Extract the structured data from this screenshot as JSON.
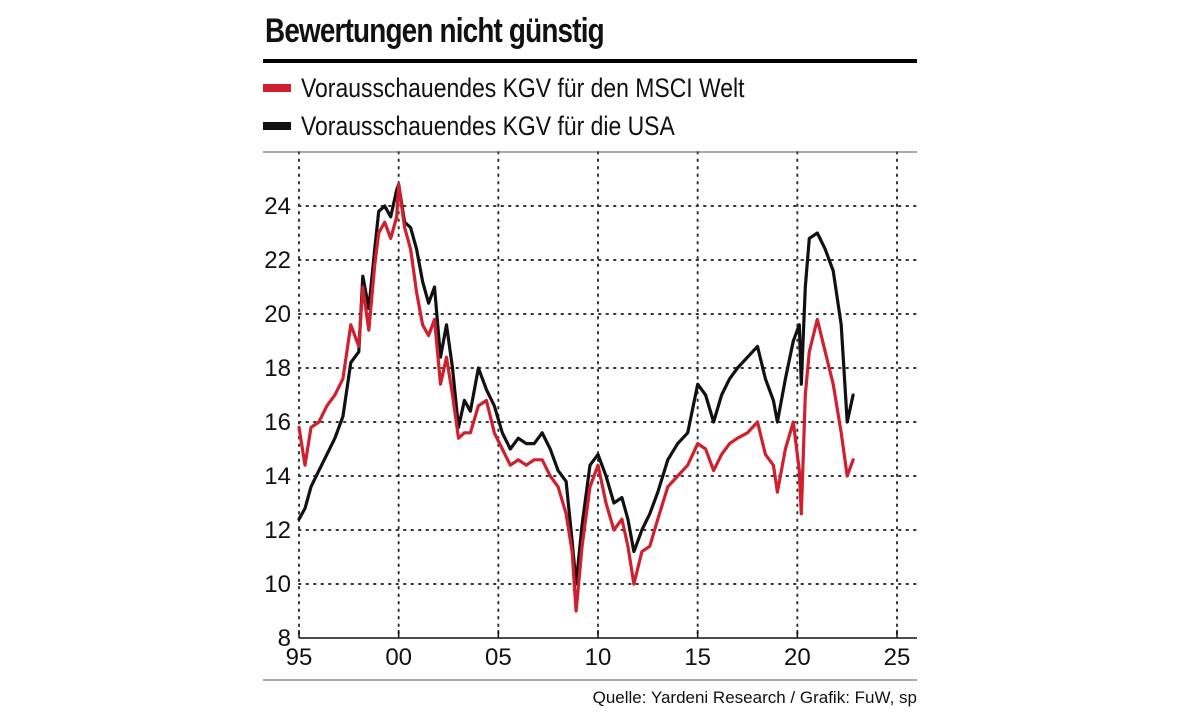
{
  "chart_data": {
    "type": "line",
    "title": "Bewertungen nicht günstig",
    "xlabel": "",
    "ylabel": "",
    "xlim": [
      1995,
      2025
    ],
    "ylim": [
      8,
      26
    ],
    "x_ticks": [
      1995,
      2000,
      2005,
      2010,
      2015,
      2020,
      2025
    ],
    "x_tick_labels": [
      "95",
      "00",
      "05",
      "10",
      "15",
      "20",
      "25"
    ],
    "y_ticks": [
      8,
      10,
      12,
      14,
      16,
      18,
      20,
      22,
      24
    ],
    "y_tick_labels": [
      "8",
      "10",
      "12",
      "14",
      "16",
      "18",
      "20",
      "22",
      "24"
    ],
    "grid": true,
    "legend_position": "top-left",
    "series": [
      {
        "name": "Vorausschauendes KGV für den MSCI Welt",
        "color": "#d0202e",
        "x": [
          1995.0,
          1995.3,
          1995.6,
          1996.0,
          1996.4,
          1996.8,
          1997.2,
          1997.6,
          1998.0,
          1998.2,
          1998.5,
          1998.8,
          1999.0,
          1999.3,
          1999.6,
          1999.9,
          2000.0,
          2000.3,
          2000.6,
          2000.9,
          2001.2,
          2001.5,
          2001.8,
          2002.1,
          2002.4,
          2002.7,
          2003.0,
          2003.3,
          2003.6,
          2004.0,
          2004.4,
          2004.8,
          2005.2,
          2005.6,
          2006.0,
          2006.4,
          2006.8,
          2007.2,
          2007.6,
          2008.0,
          2008.4,
          2008.7,
          2008.9,
          2009.2,
          2009.6,
          2010.0,
          2010.4,
          2010.8,
          2011.2,
          2011.5,
          2011.8,
          2012.2,
          2012.6,
          2013.0,
          2013.5,
          2014.0,
          2014.5,
          2015.0,
          2015.4,
          2015.8,
          2016.2,
          2016.6,
          2017.0,
          2017.5,
          2018.0,
          2018.4,
          2018.8,
          2019.0,
          2019.4,
          2019.8,
          2020.1,
          2020.2,
          2020.4,
          2020.6,
          2021.0,
          2021.4,
          2021.8,
          2022.2,
          2022.5,
          2022.8
        ],
        "values": [
          15.8,
          14.4,
          15.8,
          16.0,
          16.6,
          17.0,
          17.6,
          19.6,
          18.8,
          21.0,
          19.4,
          21.8,
          23.0,
          23.4,
          22.8,
          23.6,
          24.8,
          23.2,
          22.4,
          20.8,
          19.6,
          19.2,
          19.8,
          17.4,
          18.4,
          17.0,
          15.4,
          15.6,
          15.6,
          16.6,
          16.8,
          15.6,
          15.0,
          14.4,
          14.6,
          14.4,
          14.6,
          14.6,
          14.0,
          13.6,
          12.6,
          11.2,
          9.0,
          11.4,
          13.6,
          14.4,
          13.0,
          12.0,
          12.4,
          11.4,
          10.0,
          11.2,
          11.4,
          12.4,
          13.6,
          14.0,
          14.4,
          15.2,
          15.0,
          14.2,
          14.8,
          15.2,
          15.4,
          15.6,
          16.0,
          14.8,
          14.4,
          13.4,
          15.0,
          16.0,
          14.2,
          12.6,
          17.0,
          18.6,
          19.8,
          18.6,
          17.4,
          15.6,
          14.0,
          14.6
        ]
      },
      {
        "name": "Vorausschauendes KGV für die USA",
        "color": "#111111",
        "x": [
          1995.0,
          1995.3,
          1995.6,
          1996.0,
          1996.4,
          1996.8,
          1997.2,
          1997.6,
          1998.0,
          1998.2,
          1998.5,
          1998.8,
          1999.0,
          1999.3,
          1999.6,
          1999.9,
          2000.0,
          2000.3,
          2000.6,
          2000.9,
          2001.2,
          2001.5,
          2001.8,
          2002.1,
          2002.4,
          2002.7,
          2003.0,
          2003.3,
          2003.6,
          2004.0,
          2004.4,
          2004.8,
          2005.2,
          2005.6,
          2006.0,
          2006.4,
          2006.8,
          2007.2,
          2007.6,
          2008.0,
          2008.4,
          2008.7,
          2008.9,
          2009.2,
          2009.6,
          2010.0,
          2010.4,
          2010.8,
          2011.2,
          2011.5,
          2011.8,
          2012.2,
          2012.6,
          2013.0,
          2013.5,
          2014.0,
          2014.5,
          2015.0,
          2015.4,
          2015.8,
          2016.2,
          2016.6,
          2017.0,
          2017.5,
          2018.0,
          2018.4,
          2018.8,
          2019.0,
          2019.4,
          2019.8,
          2020.1,
          2020.2,
          2020.4,
          2020.6,
          2021.0,
          2021.4,
          2021.8,
          2022.2,
          2022.5,
          2022.8
        ],
        "values": [
          12.4,
          12.8,
          13.6,
          14.2,
          14.8,
          15.4,
          16.2,
          18.2,
          18.6,
          21.4,
          20.2,
          22.4,
          23.8,
          24.0,
          23.6,
          24.6,
          24.8,
          23.4,
          23.2,
          22.4,
          21.2,
          20.4,
          21.0,
          18.4,
          19.6,
          18.0,
          15.8,
          16.8,
          16.4,
          18.0,
          17.2,
          16.6,
          15.6,
          15.0,
          15.4,
          15.2,
          15.2,
          15.6,
          15.0,
          14.2,
          13.8,
          11.6,
          10.0,
          12.2,
          14.4,
          14.8,
          14.0,
          13.0,
          13.2,
          12.4,
          11.2,
          12.0,
          12.6,
          13.4,
          14.6,
          15.2,
          15.6,
          17.4,
          17.0,
          16.0,
          17.0,
          17.6,
          18.0,
          18.4,
          18.8,
          17.6,
          16.8,
          16.0,
          17.6,
          19.0,
          19.6,
          17.4,
          21.0,
          22.8,
          23.0,
          22.4,
          21.6,
          19.6,
          16.0,
          17.0
        ]
      }
    ],
    "source": "Quelle: Yardeni Research / Grafik: FuW, sp"
  }
}
